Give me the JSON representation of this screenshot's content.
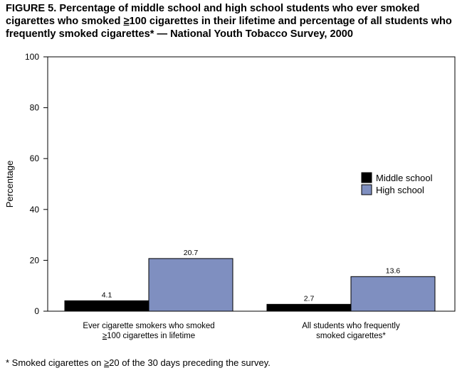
{
  "figure": {
    "title_part1": "FIGURE 5. Percentage of middle school and high school students who ever smoked cigarettes who smoked ",
    "title_ge": "≥",
    "title_part2": "100 cigarettes in their lifetime and percentage of all students who frequently smoked cigarettes* — National Youth Tobacco Survey, 2000",
    "footnote_part1": "* Smoked cigarettes on ",
    "footnote_ge": "≥",
    "footnote_part2": "20 of the 30 days preceding the survey."
  },
  "chart_data": {
    "type": "bar",
    "title": "Percentage of middle school and high school students who ever smoked cigarettes who smoked ≥100 cigarettes in their lifetime and percentage of all students who frequently smoked cigarettes* — National Youth Tobacco Survey, 2000",
    "ylabel": "Percentage",
    "xlabel": "",
    "ylim": [
      0,
      100
    ],
    "yticks": [
      "0",
      "20",
      "40",
      "60",
      "80",
      "100"
    ],
    "grid": false,
    "legend_position": "right-middle",
    "categories": [
      {
        "line1": "Ever cigarette smokers who smoked",
        "ge": "≥",
        "line2": "100 cigarettes in lifetime"
      },
      {
        "line1": "All students who frequently",
        "ge": "",
        "line2": "smoked cigarettes*"
      }
    ],
    "series": [
      {
        "name": "Middle school",
        "color": "#000000",
        "values": [
          4.1,
          2.7
        ],
        "labels": [
          "4.1",
          "2.7"
        ]
      },
      {
        "name": "High school",
        "color": "#7f8fc0",
        "values": [
          20.7,
          13.6
        ],
        "labels": [
          "20.7",
          "13.6"
        ]
      }
    ]
  }
}
